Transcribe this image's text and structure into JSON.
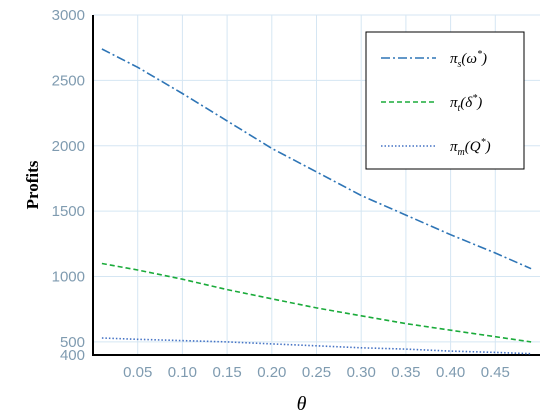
{
  "chart_data": {
    "type": "line",
    "xlabel": "θ",
    "ylabel": "Profits",
    "xlim": [
      0.0,
      0.5
    ],
    "ylim": [
      400,
      3000
    ],
    "x_ticks": [
      0.05,
      0.1,
      0.15,
      0.2,
      0.25,
      0.3,
      0.35,
      0.4,
      0.45
    ],
    "x_tick_labels": [
      "0.05",
      "0.10",
      "0.15",
      "0.20",
      "0.25",
      "0.30",
      "0.35",
      "0.40",
      "0.45"
    ],
    "y_ticks": [
      400,
      500,
      1000,
      1500,
      2000,
      2500,
      3000
    ],
    "y_tick_labels": [
      "400",
      "500",
      "1000",
      "1500",
      "2000",
      "2500",
      "3000"
    ],
    "grid": true,
    "legend_position": "top-right",
    "x": [
      0.01,
      0.05,
      0.1,
      0.15,
      0.2,
      0.25,
      0.3,
      0.35,
      0.4,
      0.45,
      0.49
    ],
    "series": [
      {
        "name": "π_s(ω*)",
        "legend": {
          "base": "π",
          "sub": "s",
          "arg": "ω",
          "sup": "*"
        },
        "style": "dashdot",
        "color": "#2e75b6",
        "values": [
          2740,
          2600,
          2400,
          2190,
          1980,
          1800,
          1620,
          1470,
          1320,
          1180,
          1060
        ]
      },
      {
        "name": "π_t(δ*)",
        "legend": {
          "base": "π",
          "sub": "t",
          "arg": "δ",
          "sup": "*"
        },
        "style": "dashed",
        "color": "#1aab3a",
        "values": [
          1100,
          1050,
          980,
          900,
          830,
          760,
          700,
          640,
          590,
          540,
          500
        ]
      },
      {
        "name": "π_m(Q*)",
        "legend": {
          "base": "π",
          "sub": "m",
          "arg": "Q",
          "sup": "*"
        },
        "style": "dotted",
        "color": "#4472c4",
        "values": [
          530,
          520,
          510,
          500,
          485,
          470,
          455,
          445,
          430,
          420,
          410
        ]
      }
    ]
  }
}
